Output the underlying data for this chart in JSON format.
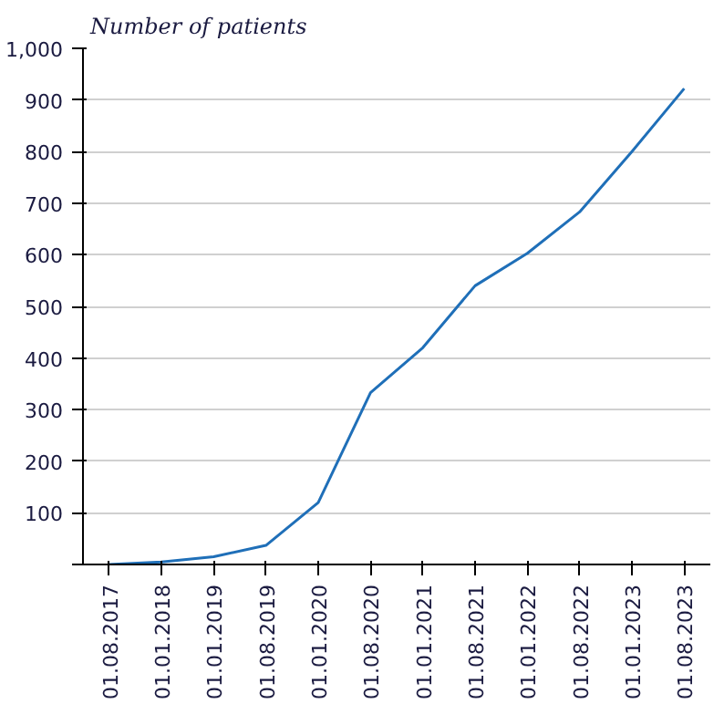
{
  "chart_data": {
    "type": "line",
    "ylabel": "Number of patients",
    "categories": [
      "01.08.2017",
      "01.01.2018",
      "01.01.2019",
      "01.08.2019",
      "01.01.2020",
      "01.08.2020",
      "01.01.2021",
      "01.08.2021",
      "01.01.2022",
      "01.08.2022",
      "01.01.2023",
      "01.08.2023"
    ],
    "series": [
      {
        "color": "#1f6fb8",
        "values": [
          0,
          5,
          15,
          37,
          120,
          333,
          420,
          540,
          603,
          683,
          800,
          922
        ]
      }
    ],
    "ylim": [
      0,
      1000
    ],
    "yticks": [
      {
        "value": 0,
        "label": null
      },
      100,
      200,
      300,
      400,
      500,
      600,
      700,
      800,
      900,
      {
        "value": 1000,
        "label": "1,000"
      }
    ],
    "grid": "y",
    "marker": "none",
    "line_style": "solid"
  }
}
